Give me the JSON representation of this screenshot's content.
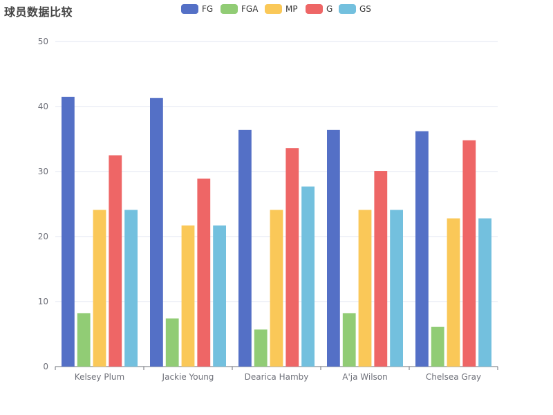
{
  "chart_data": {
    "type": "bar",
    "title": "球员数据比较",
    "categories": [
      "Kelsey Plum",
      "Jackie Young",
      "Dearica Hamby",
      "A'ja Wilson",
      "Chelsea Gray"
    ],
    "series": [
      {
        "name": "FG",
        "color": "#5470c6",
        "values": [
          41.5,
          41.3,
          36.4,
          36.4,
          36.2
        ]
      },
      {
        "name": "FGA",
        "color": "#91cc75",
        "values": [
          8.2,
          7.4,
          5.7,
          8.2,
          6.1
        ]
      },
      {
        "name": "MP",
        "color": "#fac858",
        "values": [
          24.1,
          21.7,
          24.1,
          24.1,
          22.8
        ]
      },
      {
        "name": "G",
        "color": "#ee6666",
        "values": [
          32.5,
          28.9,
          33.6,
          30.1,
          34.8
        ]
      },
      {
        "name": "GS",
        "color": "#73c0de",
        "values": [
          24.1,
          21.7,
          27.7,
          24.1,
          22.8
        ]
      }
    ],
    "ylim": [
      0,
      50
    ],
    "yticks": [
      0,
      10,
      20,
      30,
      40,
      50
    ],
    "grid": true,
    "legend": "top-center",
    "xlabel": "",
    "ylabel": ""
  }
}
